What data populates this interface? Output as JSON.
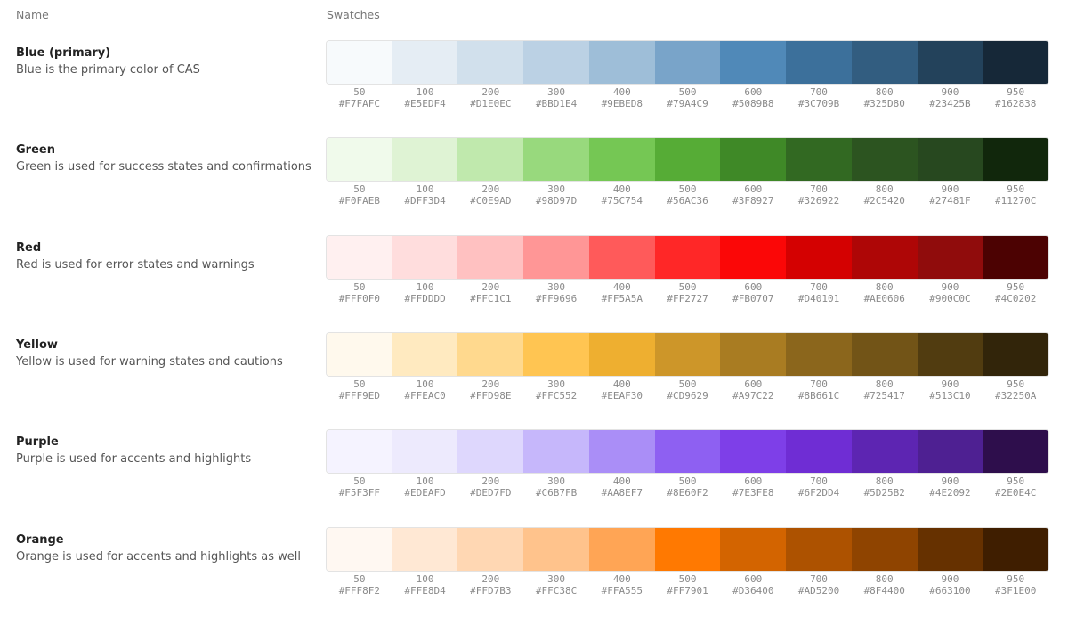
{
  "headers": {
    "name": "Name",
    "swatches": "Swatches"
  },
  "shades": [
    "50",
    "100",
    "200",
    "300",
    "400",
    "500",
    "600",
    "700",
    "800",
    "900",
    "950"
  ],
  "groups": [
    {
      "name": "Blue (primary)",
      "description": "Blue is the primary color of CAS",
      "colors": [
        "#F7FAFC",
        "#E5EDF4",
        "#D1E0EC",
        "#BBD1E4",
        "#9EBED8",
        "#79A4C9",
        "#5089B8",
        "#3C709B",
        "#325D80",
        "#23425B",
        "#162838"
      ]
    },
    {
      "name": "Green",
      "description": "Green is used for success states and confirmations",
      "colors": [
        "#F0FAEB",
        "#DFF3D4",
        "#C0E9AD",
        "#98D97D",
        "#75C754",
        "#56AC36",
        "#3F8927",
        "#326922",
        "#2C5420",
        "#27481F",
        "#11270C"
      ]
    },
    {
      "name": "Red",
      "description": "Red is used for error states and warnings",
      "colors": [
        "#FFF0F0",
        "#FFDDDD",
        "#FFC1C1",
        "#FF9696",
        "#FF5A5A",
        "#FF2727",
        "#FB0707",
        "#D40101",
        "#AE0606",
        "#900C0C",
        "#4C0202"
      ]
    },
    {
      "name": "Yellow",
      "description": "Yellow is used for warning states and cautions",
      "colors": [
        "#FFF9ED",
        "#FFEAC0",
        "#FFD98E",
        "#FFC552",
        "#EEAF30",
        "#CD9629",
        "#A97C22",
        "#8B661C",
        "#725417",
        "#513C10",
        "#32250A"
      ]
    },
    {
      "name": "Purple",
      "description": "Purple is used for accents and highlights",
      "colors": [
        "#F5F3FF",
        "#EDEAFD",
        "#DED7FD",
        "#C6B7FB",
        "#AA8EF7",
        "#8E60F2",
        "#7E3FE8",
        "#6F2DD4",
        "#5D25B2",
        "#4E2092",
        "#2E0E4C"
      ]
    },
    {
      "name": "Orange",
      "description": "Orange is used for accents and highlights as well",
      "colors": [
        "#FFF8F2",
        "#FFE8D4",
        "#FFD7B3",
        "#FFC38C",
        "#FFA555",
        "#FF7901",
        "#D36400",
        "#AD5200",
        "#8F4400",
        "#663100",
        "#3F1E00"
      ]
    }
  ]
}
